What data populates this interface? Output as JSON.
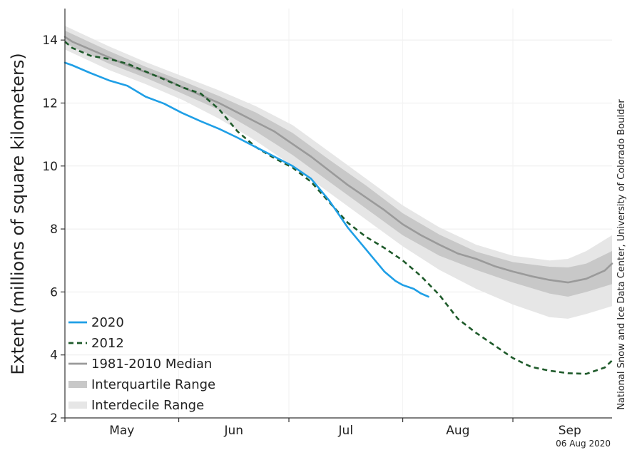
{
  "chart_data": {
    "type": "line",
    "title": "",
    "ylabel": "Extent (millions of square kilometers)",
    "xlabel": "",
    "ylim": [
      2,
      15
    ],
    "yticks": [
      2,
      4,
      6,
      8,
      10,
      12,
      14
    ],
    "x_unit": "days since May 1",
    "xlim": [
      -2,
      147
    ],
    "month_labels": [
      {
        "label": "May",
        "x": 13.5
      },
      {
        "label": "Jun",
        "x": 44
      },
      {
        "label": "Jul",
        "x": 74.5
      },
      {
        "label": "Aug",
        "x": 105
      },
      {
        "label": "Sep",
        "x": 135.5
      }
    ],
    "month_tick_x": [
      -2,
      29,
      59,
      90,
      120
    ],
    "grid": true,
    "legend_position": "bottom-left",
    "legend": [
      {
        "label": "2020",
        "kind": "line",
        "color": "#1f9fe6"
      },
      {
        "label": "2012",
        "kind": "dashed",
        "color": "#1e5a2a"
      },
      {
        "label": "1981-2010 Median",
        "kind": "line",
        "color": "#9a9a9a"
      },
      {
        "label": "Interquartile Range",
        "kind": "band",
        "color": "#c8c8c8"
      },
      {
        "label": "Interdecile Range",
        "kind": "band",
        "color": "#e6e6e6"
      }
    ],
    "series": [
      {
        "name": "2020",
        "color": "#1f9fe6",
        "style": "solid",
        "x": [
          -2,
          0,
          5,
          10,
          15,
          20,
          25,
          30,
          35,
          40,
          45,
          50,
          55,
          60,
          65,
          70,
          75,
          80,
          85,
          88,
          90,
          93,
          95,
          97
        ],
        "y": [
          13.28,
          13.2,
          12.95,
          12.72,
          12.55,
          12.2,
          11.98,
          11.68,
          11.42,
          11.18,
          10.9,
          10.6,
          10.3,
          10.0,
          9.6,
          8.9,
          8.05,
          7.35,
          6.65,
          6.35,
          6.22,
          6.1,
          5.95,
          5.85
        ]
      },
      {
        "name": "2012",
        "color": "#1e5a2a",
        "style": "dashed",
        "x": [
          -2,
          0,
          5,
          10,
          15,
          20,
          25,
          30,
          35,
          40,
          45,
          50,
          55,
          60,
          65,
          70,
          75,
          80,
          85,
          90,
          95,
          100,
          105,
          110,
          115,
          120,
          125,
          130,
          135,
          140,
          145,
          147
        ],
        "y": [
          13.95,
          13.75,
          13.5,
          13.4,
          13.25,
          13.0,
          12.75,
          12.5,
          12.3,
          11.8,
          11.1,
          10.6,
          10.25,
          9.95,
          9.5,
          8.85,
          8.2,
          7.75,
          7.4,
          7.0,
          6.5,
          5.9,
          5.15,
          4.7,
          4.3,
          3.9,
          3.62,
          3.5,
          3.42,
          3.4,
          3.6,
          3.82
        ]
      },
      {
        "name": "1981-2010 Median",
        "color": "#9a9a9a",
        "style": "solid",
        "x": [
          -2,
          0,
          5,
          10,
          15,
          20,
          25,
          30,
          35,
          40,
          45,
          50,
          55,
          60,
          65,
          70,
          75,
          80,
          85,
          90,
          95,
          100,
          105,
          110,
          115,
          120,
          125,
          130,
          135,
          140,
          145,
          147
        ],
        "y": [
          14.1,
          13.95,
          13.7,
          13.45,
          13.2,
          12.98,
          12.78,
          12.5,
          12.25,
          12.0,
          11.7,
          11.4,
          11.1,
          10.7,
          10.3,
          9.85,
          9.4,
          9.0,
          8.6,
          8.15,
          7.8,
          7.5,
          7.22,
          7.05,
          6.82,
          6.65,
          6.5,
          6.38,
          6.3,
          6.42,
          6.68,
          6.9
        ]
      }
    ],
    "bands": [
      {
        "name": "Interdecile Range",
        "color": "#e6e6e6",
        "x": [
          -2,
          10,
          20,
          30,
          40,
          50,
          60,
          70,
          80,
          90,
          100,
          110,
          120,
          130,
          135,
          140,
          147
        ],
        "upper": [
          14.45,
          13.8,
          13.3,
          12.85,
          12.4,
          11.9,
          11.3,
          10.45,
          9.6,
          8.75,
          8.05,
          7.5,
          7.15,
          7.0,
          7.05,
          7.3,
          7.8
        ],
        "lower": [
          13.7,
          13.05,
          12.6,
          12.1,
          11.5,
          10.8,
          10.0,
          9.15,
          8.3,
          7.45,
          6.7,
          6.1,
          5.6,
          5.2,
          5.15,
          5.3,
          5.55
        ]
      },
      {
        "name": "Interquartile Range",
        "color": "#c8c8c8",
        "x": [
          -2,
          10,
          20,
          30,
          40,
          50,
          60,
          70,
          80,
          90,
          100,
          110,
          120,
          130,
          135,
          140,
          147
        ],
        "upper": [
          14.3,
          13.65,
          13.15,
          12.7,
          12.22,
          11.7,
          11.05,
          10.2,
          9.38,
          8.5,
          7.82,
          7.28,
          6.95,
          6.8,
          6.78,
          6.9,
          7.3
        ],
        "lower": [
          13.9,
          13.25,
          12.8,
          12.3,
          11.78,
          11.1,
          10.35,
          9.5,
          8.65,
          7.8,
          7.15,
          6.7,
          6.3,
          5.95,
          5.85,
          6.0,
          6.25
        ]
      }
    ]
  },
  "side_credit": "National Snow and Ice Data Center, University of Colorado Boulder",
  "date_stamp": "06 Aug 2020"
}
